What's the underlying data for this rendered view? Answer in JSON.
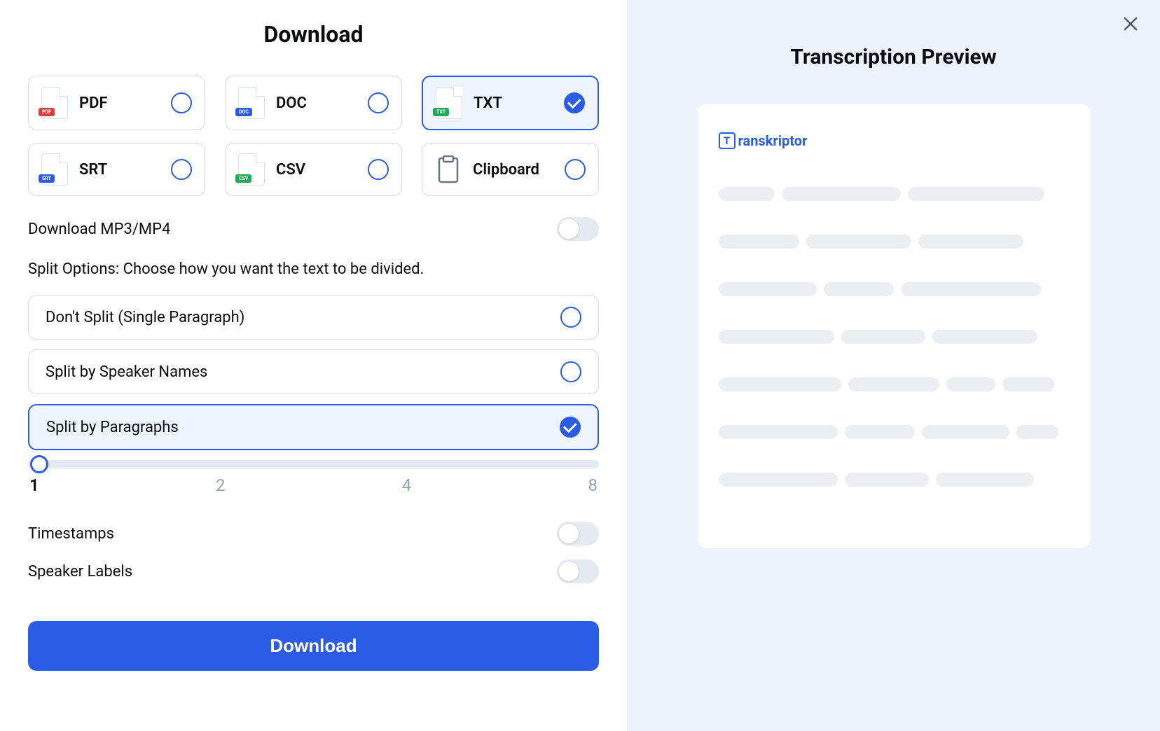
{
  "left": {
    "title": "Download",
    "formats": [
      {
        "label": "PDF",
        "badge": "PDF",
        "badgeClass": "badge-pdf",
        "selected": false
      },
      {
        "label": "DOC",
        "badge": "DOC",
        "badgeClass": "badge-doc",
        "selected": false
      },
      {
        "label": "TXT",
        "badge": "TXT",
        "badgeClass": "badge-txt",
        "selected": true
      },
      {
        "label": "SRT",
        "badge": "SRT",
        "badgeClass": "badge-srt",
        "selected": false
      },
      {
        "label": "CSV",
        "badge": "CSV",
        "badgeClass": "badge-csv",
        "selected": false
      },
      {
        "label": "Clipboard",
        "clipboard": true,
        "selected": false
      }
    ],
    "mp3_label": "Download MP3/MP4",
    "mp3_on": false,
    "split_heading": "Split Options: Choose how you want the text to be divided.",
    "split_options": [
      {
        "label": "Don't Split (Single Paragraph)",
        "selected": false
      },
      {
        "label": "Split by Speaker Names",
        "selected": false
      },
      {
        "label": "Split by Paragraphs",
        "selected": true
      }
    ],
    "slider": {
      "value": 1,
      "marks": [
        {
          "label": "1",
          "active": true
        },
        {
          "label": "2",
          "active": false
        },
        {
          "label": "4",
          "active": false
        },
        {
          "label": "8",
          "active": false
        }
      ]
    },
    "timestamps_label": "Timestamps",
    "timestamps_on": false,
    "speaker_labels_label": "Speaker Labels",
    "speaker_labels_on": false,
    "download_button": "Download"
  },
  "right": {
    "title": "Transcription Preview",
    "brand": "ranskriptor",
    "brand_letter": "T",
    "skeleton_rows": [
      [
        80,
        170,
        195
      ],
      [
        115,
        150,
        150
      ],
      [
        140,
        100,
        200
      ],
      [
        165,
        120,
        150
      ],
      [
        175,
        130,
        70,
        75
      ],
      [
        170,
        100,
        125,
        60
      ],
      [
        170,
        120,
        140
      ]
    ],
    "colors": {
      "accent": "#2b5ce6",
      "panel_bg": "#eef3fb",
      "skeleton": "#eceef2",
      "border": "#d7dbe3"
    }
  }
}
